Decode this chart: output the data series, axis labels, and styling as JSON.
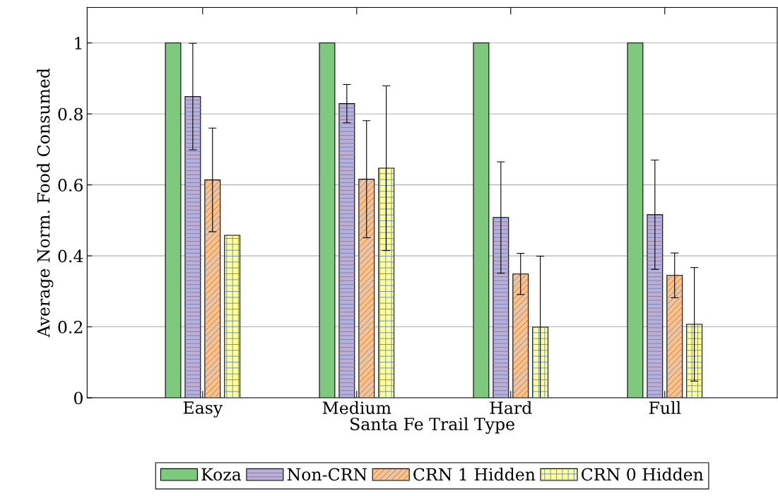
{
  "chart_data": {
    "type": "bar",
    "xlabel": "Santa Fe Trail Type",
    "ylabel": "Average Norm. Food Consumed",
    "categories": [
      "Easy",
      "Medium",
      "Hard",
      "Full"
    ],
    "series": [
      {
        "name": "Koza",
        "color": "#7fc97f",
        "values": [
          1,
          1,
          1,
          1
        ]
      },
      {
        "name": "Non-CRN",
        "color": "#beaed4",
        "values": [
          0.849,
          0.829,
          0.508,
          0.516
        ],
        "errors": [
          0.15,
          0.054,
          0.157,
          0.154
        ]
      },
      {
        "name": "CRN 1 Hidden",
        "color": "#fdc086",
        "values": [
          0.614,
          0.616,
          0.349,
          0.345
        ],
        "errors": [
          0.146,
          0.165,
          0.058,
          0.063
        ]
      },
      {
        "name": "CRN 0 Hidden",
        "color": "#ffff99",
        "values": [
          0.458,
          0.647,
          0.199,
          0.207
        ],
        "errors": [
          null,
          0.232,
          0.2,
          0.16
        ]
      }
    ],
    "ylim": [
      0,
      1.1
    ],
    "yticks": [
      0,
      0.2,
      0.4,
      0.6,
      0.8,
      1
    ],
    "grid": "y",
    "legend": "bottom"
  }
}
